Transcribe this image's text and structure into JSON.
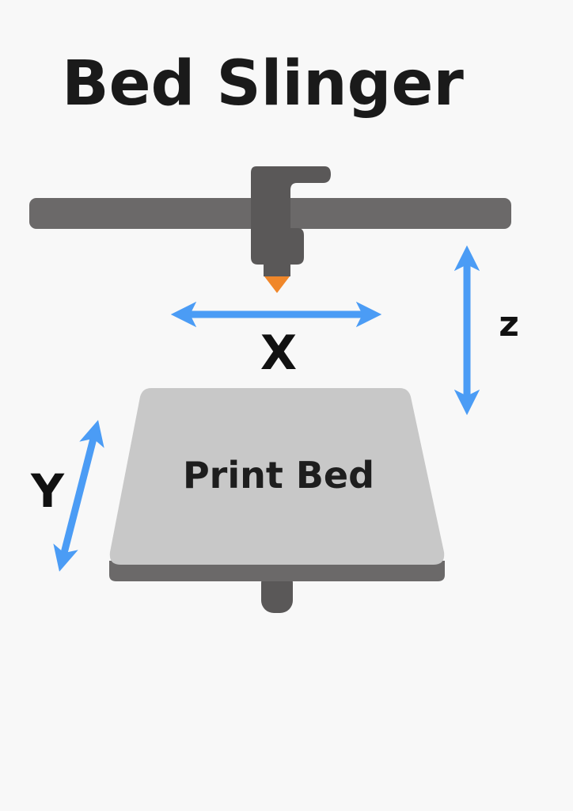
{
  "title": "Bed Slinger",
  "bed_label": "Print Bed",
  "axes": {
    "x_label": "X",
    "y_label": "Y",
    "z_label": "z"
  },
  "colors": {
    "background": "#f8f8f8",
    "rail": "#6b6969",
    "toolhead": "#5a5858",
    "nozzle": "#f0872a",
    "arrow": "#4b9cf5",
    "bed_surface": "#c8c8c8",
    "bed_base": "#6b6969",
    "text": "#1a1a1a"
  }
}
